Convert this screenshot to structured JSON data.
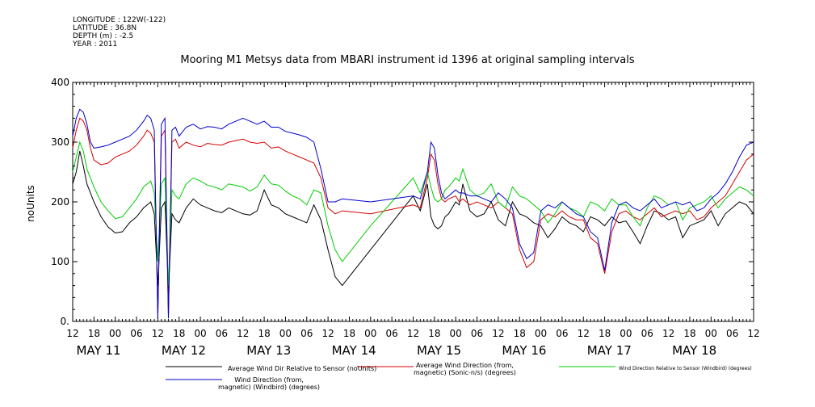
{
  "meta": {
    "longitude": "LONGITUDE : 122W(-122)",
    "latitude": "LATITUDE : 36.8N",
    "depth": "DEPTH (m) : -2.5",
    "year": "YEAR : 2011"
  },
  "chart_data": {
    "type": "line",
    "title": "Mooring M1 Metsys data from MBARI instrument id 1396 at original sampling intervals",
    "ylabel": "noUnits",
    "xlabel": "",
    "ylim": [
      0,
      400
    ],
    "xlim_hours_from_may11_00": [
      12,
      204
    ],
    "y_ticks": [
      "0.",
      "100",
      "200",
      "300",
      "400"
    ],
    "hour_tick_labels": [
      "12",
      "18",
      "00",
      "06",
      "12",
      "18",
      "00",
      "06",
      "12",
      "18",
      "00",
      "06",
      "12",
      "18",
      "00",
      "06",
      "12",
      "18",
      "00",
      "06",
      "12",
      "18",
      "00",
      "06",
      "12",
      "18",
      "00",
      "06",
      "12",
      "18",
      "00",
      "06",
      "12"
    ],
    "day_labels": [
      "MAY 11",
      "MAY 12",
      "MAY 13",
      "MAY 14",
      "MAY 15",
      "MAY 16",
      "MAY 17",
      "MAY 18"
    ],
    "grid": false,
    "legend_position": "bottom",
    "x_units": "hours since 2011-05-11 00:00",
    "series": [
      {
        "name": "Average Wind Dir Relative to Sensor (noUnits)",
        "color": "#000000",
        "x": [
          12,
          13,
          14,
          15,
          16,
          17,
          18,
          20,
          22,
          24,
          26,
          28,
          30,
          32,
          33,
          34,
          35,
          36,
          37,
          38,
          39,
          40,
          41,
          42,
          44,
          46,
          48,
          50,
          52,
          54,
          56,
          60,
          62,
          64,
          66,
          68,
          70,
          72,
          74,
          76,
          78,
          80,
          82,
          84,
          86,
          88,
          96,
          108,
          110,
          112,
          113,
          114,
          115,
          116,
          117,
          118,
          120,
          121,
          122,
          124,
          126,
          128,
          130,
          132,
          134,
          136,
          138,
          140,
          142,
          144,
          146,
          148,
          150,
          152,
          154,
          156,
          158,
          160,
          162,
          164,
          166,
          168,
          170,
          172,
          174,
          176,
          178,
          180,
          182,
          184,
          186,
          188,
          190,
          192,
          194,
          196,
          198,
          200,
          202,
          204
        ],
        "y": [
          230,
          250,
          285,
          260,
          230,
          215,
          200,
          175,
          158,
          148,
          150,
          165,
          175,
          190,
          195,
          200,
          180,
          60,
          190,
          200,
          50,
          180,
          170,
          165,
          190,
          205,
          195,
          190,
          185,
          182,
          190,
          180,
          178,
          185,
          220,
          195,
          190,
          180,
          175,
          170,
          165,
          195,
          170,
          120,
          75,
          60,
          120,
          210,
          185,
          230,
          175,
          160,
          155,
          160,
          175,
          180,
          200,
          195,
          230,
          185,
          175,
          180,
          200,
          170,
          160,
          200,
          180,
          175,
          165,
          160,
          140,
          155,
          175,
          165,
          160,
          150,
          175,
          170,
          160,
          175,
          165,
          168,
          150,
          130,
          160,
          185,
          180,
          170,
          175,
          140,
          160,
          165,
          170,
          185,
          160,
          180,
          190,
          200,
          195,
          180
        ]
      },
      {
        "name": "Average Wind Direction (from, magnetic) (Sonic-n/s) (degrees)",
        "color": "#d40000",
        "x": [
          12,
          13,
          14,
          15,
          16,
          17,
          18,
          20,
          22,
          24,
          26,
          28,
          30,
          32,
          33,
          34,
          35,
          36,
          37,
          38,
          39,
          40,
          41,
          42,
          44,
          46,
          48,
          50,
          52,
          54,
          56,
          60,
          62,
          64,
          66,
          68,
          70,
          72,
          74,
          76,
          78,
          80,
          82,
          84,
          86,
          88,
          96,
          108,
          110,
          112,
          113,
          114,
          115,
          116,
          117,
          118,
          120,
          121,
          122,
          124,
          126,
          128,
          130,
          132,
          134,
          136,
          138,
          140,
          142,
          144,
          146,
          148,
          150,
          152,
          154,
          156,
          158,
          160,
          162,
          164,
          166,
          168,
          170,
          172,
          174,
          176,
          178,
          180,
          182,
          184,
          186,
          188,
          190,
          192,
          194,
          196,
          198,
          200,
          202,
          204
        ],
        "y": [
          290,
          320,
          340,
          335,
          320,
          290,
          270,
          262,
          265,
          275,
          280,
          285,
          295,
          310,
          320,
          315,
          300,
          10,
          310,
          320,
          10,
          300,
          305,
          290,
          300,
          295,
          292,
          298,
          296,
          295,
          300,
          305,
          300,
          298,
          300,
          290,
          292,
          285,
          280,
          275,
          270,
          265,
          240,
          190,
          180,
          185,
          180,
          195,
          190,
          240,
          280,
          270,
          230,
          205,
          200,
          205,
          210,
          200,
          205,
          195,
          200,
          195,
          190,
          200,
          190,
          180,
          120,
          90,
          100,
          170,
          180,
          175,
          185,
          175,
          170,
          170,
          140,
          130,
          80,
          150,
          180,
          185,
          175,
          170,
          180,
          190,
          175,
          180,
          185,
          180,
          185,
          170,
          175,
          190,
          200,
          210,
          230,
          250,
          270,
          280
        ]
      },
      {
        "name": "Wind Direction Relative to Sensor (Windbird) (degrees)",
        "color": "#00cc00",
        "x": [
          12,
          13,
          14,
          15,
          16,
          17,
          18,
          20,
          22,
          24,
          26,
          28,
          30,
          32,
          33,
          34,
          35,
          36,
          37,
          38,
          39,
          40,
          41,
          42,
          44,
          46,
          48,
          50,
          52,
          54,
          56,
          60,
          62,
          64,
          66,
          68,
          70,
          72,
          74,
          76,
          78,
          80,
          82,
          84,
          86,
          88,
          96,
          108,
          110,
          112,
          113,
          114,
          115,
          116,
          117,
          118,
          120,
          121,
          122,
          124,
          126,
          128,
          130,
          132,
          134,
          136,
          138,
          140,
          142,
          144,
          146,
          148,
          150,
          152,
          154,
          156,
          158,
          160,
          162,
          164,
          166,
          168,
          170,
          172,
          174,
          176,
          178,
          180,
          182,
          184,
          186,
          188,
          190,
          192,
          194,
          196,
          198,
          200,
          202,
          204
        ],
        "y": [
          250,
          275,
          300,
          285,
          255,
          240,
          225,
          200,
          185,
          172,
          175,
          190,
          205,
          225,
          230,
          235,
          215,
          100,
          230,
          240,
          60,
          220,
          210,
          205,
          230,
          240,
          235,
          228,
          225,
          220,
          230,
          225,
          218,
          225,
          245,
          230,
          228,
          218,
          210,
          205,
          195,
          220,
          215,
          160,
          120,
          100,
          160,
          240,
          215,
          250,
          225,
          205,
          200,
          205,
          220,
          225,
          240,
          235,
          255,
          220,
          210,
          215,
          230,
          200,
          190,
          225,
          210,
          205,
          195,
          185,
          165,
          180,
          200,
          190,
          185,
          175,
          200,
          195,
          185,
          205,
          195,
          195,
          175,
          160,
          190,
          210,
          205,
          195,
          200,
          170,
          190,
          195,
          200,
          210,
          190,
          205,
          215,
          225,
          220,
          210
        ]
      },
      {
        "name": "Wind Direction (from, magnetic) (Windbird) (degrees)",
        "color": "#0000cc",
        "x": [
          12,
          13,
          14,
          15,
          16,
          17,
          18,
          20,
          22,
          24,
          26,
          28,
          30,
          32,
          33,
          34,
          35,
          36,
          37,
          38,
          39,
          40,
          41,
          42,
          44,
          46,
          48,
          50,
          52,
          54,
          56,
          60,
          62,
          64,
          66,
          68,
          70,
          72,
          74,
          76,
          78,
          80,
          82,
          84,
          86,
          88,
          96,
          108,
          110,
          112,
          113,
          114,
          115,
          116,
          117,
          118,
          120,
          121,
          122,
          124,
          126,
          128,
          130,
          132,
          134,
          136,
          138,
          140,
          142,
          144,
          146,
          148,
          150,
          152,
          154,
          156,
          158,
          160,
          162,
          164,
          166,
          168,
          170,
          172,
          174,
          176,
          178,
          180,
          182,
          184,
          186,
          188,
          190,
          192,
          194,
          196,
          198,
          200,
          202,
          204
        ],
        "y": [
          310,
          340,
          355,
          350,
          330,
          300,
          290,
          292,
          295,
          300,
          305,
          310,
          320,
          335,
          345,
          340,
          320,
          5,
          330,
          340,
          5,
          320,
          325,
          310,
          325,
          330,
          322,
          326,
          325,
          322,
          330,
          340,
          335,
          330,
          335,
          325,
          325,
          318,
          315,
          312,
          308,
          300,
          255,
          200,
          200,
          205,
          200,
          210,
          205,
          250,
          300,
          290,
          245,
          215,
          205,
          210,
          220,
          215,
          215,
          210,
          210,
          205,
          200,
          215,
          205,
          190,
          130,
          105,
          115,
          185,
          195,
          190,
          200,
          190,
          180,
          175,
          150,
          140,
          85,
          165,
          195,
          200,
          190,
          185,
          195,
          205,
          190,
          195,
          200,
          195,
          200,
          185,
          190,
          205,
          215,
          230,
          250,
          275,
          295,
          300
        ]
      }
    ]
  },
  "legend": [
    {
      "name": "Average Wind Dir Relative to Sensor (noUnits)",
      "color": "#000000"
    },
    {
      "name": "Average Wind Direction (from,\nmagnetic) (Sonic-n/s) (degrees)",
      "color": "#d40000"
    },
    {
      "name": "Wind Direction Relative to Sensor (Windbird) (degrees)",
      "color": "#00cc00"
    },
    {
      "name": "Wind Direction (from,\nmagnetic) (Windbird) (degrees)",
      "color": "#0000cc"
    }
  ]
}
